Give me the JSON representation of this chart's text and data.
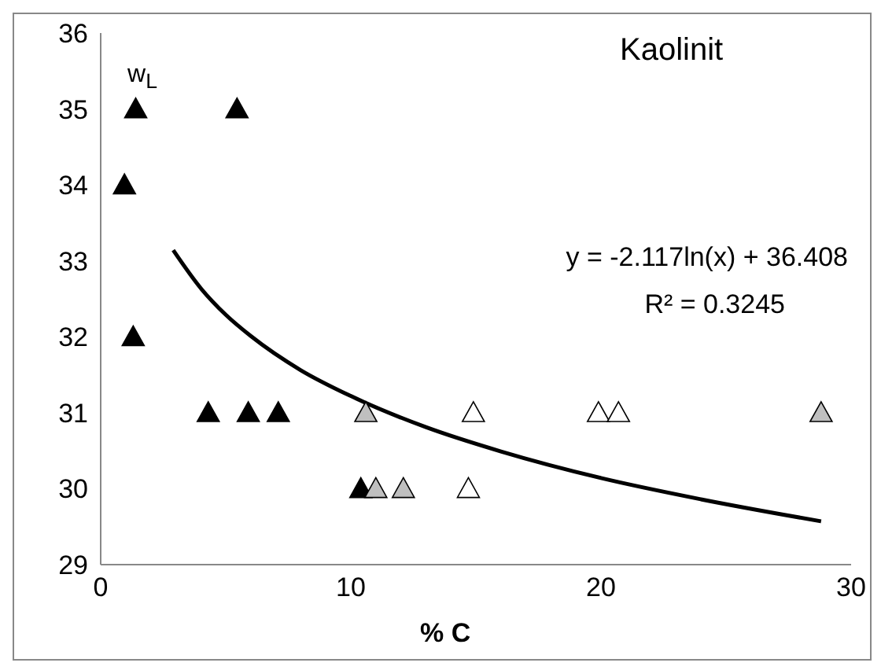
{
  "chart_data": {
    "type": "scatter",
    "title": "Kaolinit",
    "xlabel": "% C",
    "ylabel": "w$_{L}$",
    "annotations": [
      "y = -2.117ln(x) + 36.408",
      "R² = 0.3245"
    ],
    "xlim": [
      0,
      30
    ],
    "xticks": [
      0,
      10,
      20,
      30
    ],
    "ylim": [
      29,
      36
    ],
    "yticks": [
      29,
      30,
      31,
      32,
      33,
      34,
      35,
      36
    ],
    "grid": false,
    "legend": false,
    "marker": "triangle",
    "series": [
      {
        "color": "#000000",
        "x": [
          1.4,
          5.45,
          0.95,
          1.3,
          4.3,
          5.9,
          7.1,
          10.4
        ],
        "values": [
          35,
          35,
          34,
          32,
          31,
          31,
          31,
          30
        ]
      },
      {
        "color": "#bfbfbf",
        "x": [
          10.6,
          11.0,
          12.1,
          28.8
        ],
        "values": [
          31,
          30,
          30,
          31
        ]
      },
      {
        "color": "#ffffff",
        "x": [
          14.9,
          19.9,
          20.7,
          14.7
        ],
        "values": [
          31,
          31,
          31,
          30
        ]
      },
      {
        "type": "line",
        "color": "#000000",
        "marker": "none",
        "line_style": "solid",
        "x": [
          2.9,
          4,
          5,
          6,
          8,
          10,
          13,
          16,
          20,
          24,
          28.8
        ],
        "values": [
          33.14,
          32.64,
          32.29,
          32.01,
          31.56,
          31.22,
          30.81,
          30.49,
          30.14,
          29.86,
          29.57
        ]
      }
    ]
  }
}
